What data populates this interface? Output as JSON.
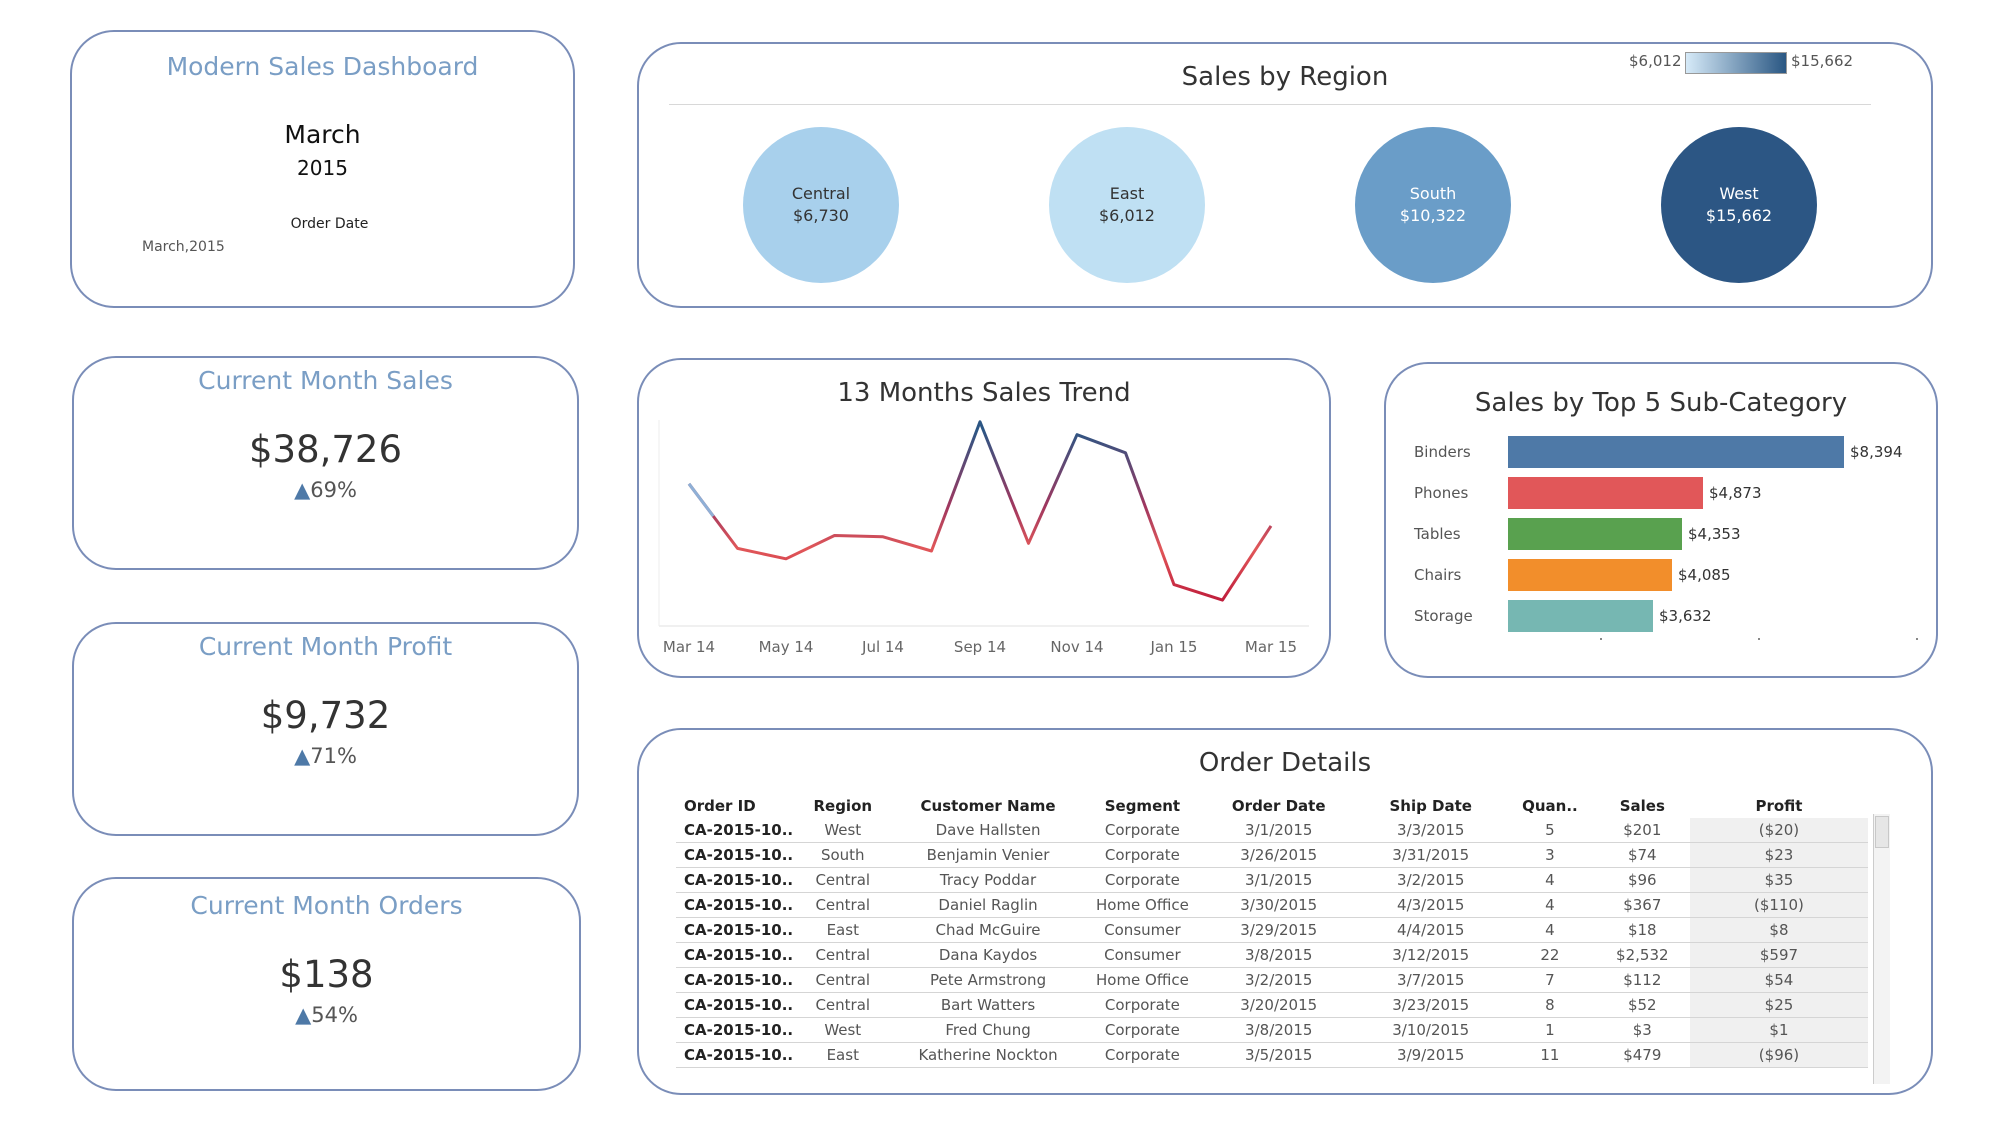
{
  "header": {
    "title": "Modern Sales Dashboard",
    "month": "March",
    "year": "2015",
    "filter_label": "Order Date",
    "filter_value": "March,2015"
  },
  "kpis": [
    {
      "title": "Current Month Sales",
      "value": "$38,726",
      "change": "69%"
    },
    {
      "title": "Current Month Profit",
      "value": "$9,732",
      "change": "71%"
    },
    {
      "title": "Current Month Orders",
      "value": "$138",
      "change": "54%"
    }
  ],
  "region": {
    "title": "Sales by Region",
    "legend_min": "$6,012",
    "legend_max": "$15,662",
    "colors": {
      "legend_start": "#d6eaf8",
      "legend_end": "#2a5783"
    },
    "bubbles": [
      {
        "name": "Central",
        "value": "$6,730",
        "color": "#a8d0ec",
        "text_color": "#333333"
      },
      {
        "name": "East",
        "value": "$6,012",
        "color": "#bfe0f3",
        "text_color": "#333333"
      },
      {
        "name": "South",
        "value": "$10,322",
        "color": "#6a9dc8",
        "text_color": "#ffffff"
      },
      {
        "name": "West",
        "value": "$15,662",
        "color": "#2c5684",
        "text_color": "#ffffff"
      }
    ]
  },
  "trend": {
    "title": "13 Months Sales Trend",
    "tick_labels": [
      "Mar 14",
      "May 14",
      "Jul 14",
      "Sep 14",
      "Nov 14",
      "Jan 15",
      "Mar 15"
    ]
  },
  "subcat": {
    "title": "Sales by Top 5 Sub-Category"
  },
  "chart_data": [
    {
      "type": "line",
      "title": "13 Months Sales Trend",
      "x": [
        "Mar 14",
        "Apr 14",
        "May 14",
        "Jun 14",
        "Jul 14",
        "Aug 14",
        "Sep 14",
        "Oct 14",
        "Nov 14",
        "Dec 14",
        "Jan 15",
        "Feb 15",
        "Mar 15"
      ],
      "y": [
        55000,
        30000,
        26000,
        35000,
        34500,
        29000,
        79000,
        32000,
        74000,
        67000,
        16000,
        10000,
        38726
      ],
      "ylim": [
        0,
        82000
      ],
      "grid": false,
      "colors": {
        "high": "#2c5684",
        "low": "#e15759",
        "start": "#8fb0d6"
      }
    },
    {
      "type": "bar",
      "title": "Sales by Top 5 Sub-Category",
      "categories": [
        "Binders",
        "Phones",
        "Tables",
        "Chairs",
        "Storage"
      ],
      "values": [
        8394,
        4873,
        4353,
        4085,
        3632
      ],
      "value_labels": [
        "$8,394",
        "$4,873",
        "$4,353",
        "$4,085",
        "$3,632"
      ],
      "colors": [
        "#4e79a7",
        "#e15759",
        "#59a14f",
        "#f28e2b",
        "#76b7b2"
      ],
      "xlim": [
        0,
        8394
      ]
    }
  ],
  "orders": {
    "title": "Order Details",
    "columns": [
      "Order ID",
      "Region",
      "Customer Name",
      "Segment",
      "Order Date",
      "Ship Date",
      "Quan..",
      "Sales",
      "Profit"
    ],
    "rows": [
      [
        "CA-2015-10..",
        "West",
        "Dave Hallsten",
        "Corporate",
        "3/1/2015",
        "3/3/2015",
        "5",
        "$201",
        "($20)"
      ],
      [
        "CA-2015-10..",
        "South",
        "Benjamin Venier",
        "Corporate",
        "3/26/2015",
        "3/31/2015",
        "3",
        "$74",
        "$23"
      ],
      [
        "CA-2015-10..",
        "Central",
        "Tracy Poddar",
        "Corporate",
        "3/1/2015",
        "3/2/2015",
        "4",
        "$96",
        "$35"
      ],
      [
        "CA-2015-10..",
        "Central",
        "Daniel Raglin",
        "Home Office",
        "3/30/2015",
        "4/3/2015",
        "4",
        "$367",
        "($110)"
      ],
      [
        "CA-2015-10..",
        "East",
        "Chad McGuire",
        "Consumer",
        "3/29/2015",
        "4/4/2015",
        "4",
        "$18",
        "$8"
      ],
      [
        "CA-2015-10..",
        "Central",
        "Dana Kaydos",
        "Consumer",
        "3/8/2015",
        "3/12/2015",
        "22",
        "$2,532",
        "$597"
      ],
      [
        "CA-2015-10..",
        "Central",
        "Pete Armstrong",
        "Home Office",
        "3/2/2015",
        "3/7/2015",
        "7",
        "$112",
        "$54"
      ],
      [
        "CA-2015-10..",
        "Central",
        "Bart Watters",
        "Corporate",
        "3/20/2015",
        "3/23/2015",
        "8",
        "$52",
        "$25"
      ],
      [
        "CA-2015-10..",
        "West",
        "Fred Chung",
        "Corporate",
        "3/8/2015",
        "3/10/2015",
        "1",
        "$3",
        "$1"
      ],
      [
        "CA-2015-10..",
        "East",
        "Katherine Nockton",
        "Corporate",
        "3/5/2015",
        "3/9/2015",
        "11",
        "$479",
        "($96)"
      ]
    ]
  }
}
